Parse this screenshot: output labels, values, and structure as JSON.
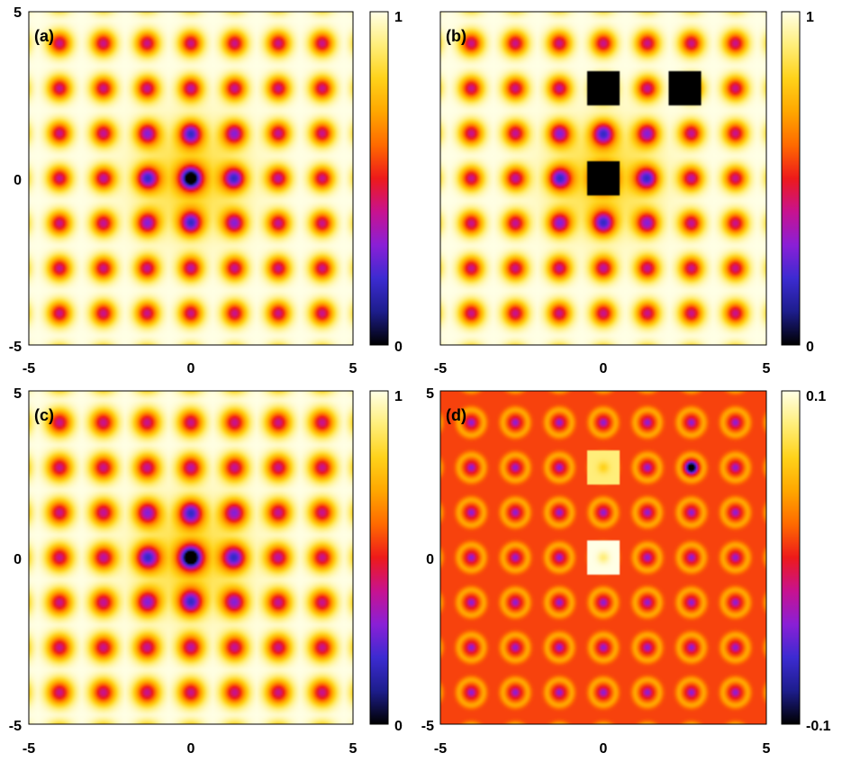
{
  "chart_data": [
    {
      "type": "heatmap",
      "panel_label": "(a)",
      "title": "",
      "xlabel": "",
      "ylabel": "",
      "xlim": [
        -5,
        5
      ],
      "ylim": [
        -5,
        5
      ],
      "x_ticks": [
        "-5",
        "0",
        "5"
      ],
      "y_ticks": [
        "-5",
        "0",
        "5"
      ],
      "colorbar": {
        "min": 0,
        "max": 1,
        "tick_labels": [
          "0",
          "1"
        ]
      },
      "pattern": {
        "lattice_spacing": 1.35,
        "dip_depth": 0.6,
        "dip_width": 0.35,
        "center_dip_depth": 0.45,
        "center_dip_width": 1.6,
        "core_depth": 0.5,
        "core_width": 0.12
      },
      "masked_regions": []
    },
    {
      "type": "heatmap",
      "panel_label": "(b)",
      "title": "",
      "xlabel": "",
      "ylabel": "",
      "xlim": [
        -5,
        5
      ],
      "ylim": [
        -5,
        5
      ],
      "x_ticks": [
        "-5",
        "0",
        "5"
      ],
      "y_ticks": [
        "-5",
        "0",
        "5"
      ],
      "colorbar": {
        "min": 0,
        "max": 1,
        "tick_labels": [
          "0",
          "1"
        ]
      },
      "pattern": {
        "lattice_spacing": 1.35,
        "dip_depth": 0.6,
        "dip_width": 0.35,
        "center_dip_depth": 0.45,
        "center_dip_width": 1.6,
        "core_depth": 0.0,
        "core_width": 0.12
      },
      "masked_regions": [
        {
          "x": [
            -0.5,
            0.5
          ],
          "y": [
            2.2,
            3.2
          ]
        },
        {
          "x": [
            2.0,
            3.0
          ],
          "y": [
            2.2,
            3.2
          ]
        },
        {
          "x": [
            -0.5,
            0.5
          ],
          "y": [
            -0.5,
            0.5
          ]
        }
      ]
    },
    {
      "type": "heatmap",
      "panel_label": "(c)",
      "title": "",
      "xlabel": "",
      "ylabel": "",
      "xlim": [
        -5,
        5
      ],
      "ylim": [
        -5,
        5
      ],
      "x_ticks": [
        "-5",
        "0",
        "5"
      ],
      "y_ticks": [
        "-5",
        "0",
        "5"
      ],
      "colorbar": {
        "min": 0,
        "max": 1,
        "tick_labels": [
          "0",
          "1"
        ]
      },
      "pattern": {
        "lattice_spacing": 1.35,
        "dip_depth": 0.6,
        "dip_width": 0.38,
        "center_dip_depth": 0.45,
        "center_dip_width": 1.6,
        "core_depth": 0.55,
        "core_width": 0.14
      },
      "masked_regions": []
    },
    {
      "type": "heatmap",
      "panel_label": "(d)",
      "title": "",
      "xlabel": "",
      "ylabel": "",
      "xlim": [
        -5,
        5
      ],
      "ylim": [
        -5,
        5
      ],
      "x_ticks": [
        "-5",
        "0",
        "5"
      ],
      "y_ticks": [
        "-5",
        "0",
        "5"
      ],
      "colorbar": {
        "min": -0.1,
        "max": 0.1,
        "tick_labels": [
          "-0.1",
          "0.1"
        ]
      },
      "difference_pattern": {
        "lattice_spacing": 1.35,
        "base": 0.01,
        "site_value": -0.05,
        "ring_value": 0.05
      },
      "bright_regions": [
        {
          "x": [
            -0.5,
            0.5
          ],
          "y": [
            -0.5,
            0.5
          ],
          "value": 0.1
        },
        {
          "x": [
            -0.5,
            0.5
          ],
          "y": [
            2.2,
            3.2
          ],
          "value": 0.08
        }
      ],
      "dark_spots": [
        {
          "x": 2.7,
          "y": 2.7,
          "value": -0.09
        }
      ]
    }
  ],
  "colormap": [
    "#000000",
    "#1d1d8c",
    "#3c2bd1",
    "#8a1fd6",
    "#c8128f",
    "#ee1a1a",
    "#ff6a00",
    "#ffa700",
    "#ffd21a",
    "#ffee7a",
    "#ffffe6"
  ]
}
